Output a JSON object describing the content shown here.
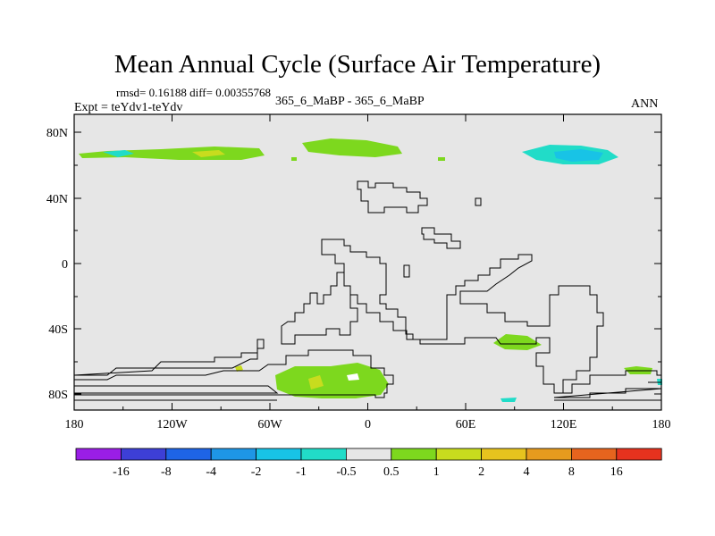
{
  "title": "Mean Annual Cycle (Surface Air Temperature)",
  "stats": "rmsd= 0.16188 diff= 0.00355768",
  "experiment": "Expt = teYdv1-teYdv",
  "case_label": "365_6_MaBP - 365_6_MaBP",
  "season": "ANN",
  "lat_labels": [
    "80N",
    "40N",
    "0",
    "40S",
    "80S"
  ],
  "lon_labels": [
    "180",
    "120W",
    "60W",
    "0",
    "60E",
    "120E",
    "180"
  ],
  "legend": {
    "labels": [
      "-16",
      "-8",
      "-4",
      "-2",
      "-1",
      "-0.5",
      "0.5",
      "1",
      "2",
      "4",
      "8",
      "16"
    ],
    "colors": [
      "#9a1ee6",
      "#3d3fd6",
      "#1e64e6",
      "#1e96e6",
      "#18c3e6",
      "#21dcc8",
      "#e6e6e6",
      "#7dd81e",
      "#c8dc1e",
      "#e6c31e",
      "#e69b1e",
      "#e6641e",
      "#e6321e"
    ]
  }
}
